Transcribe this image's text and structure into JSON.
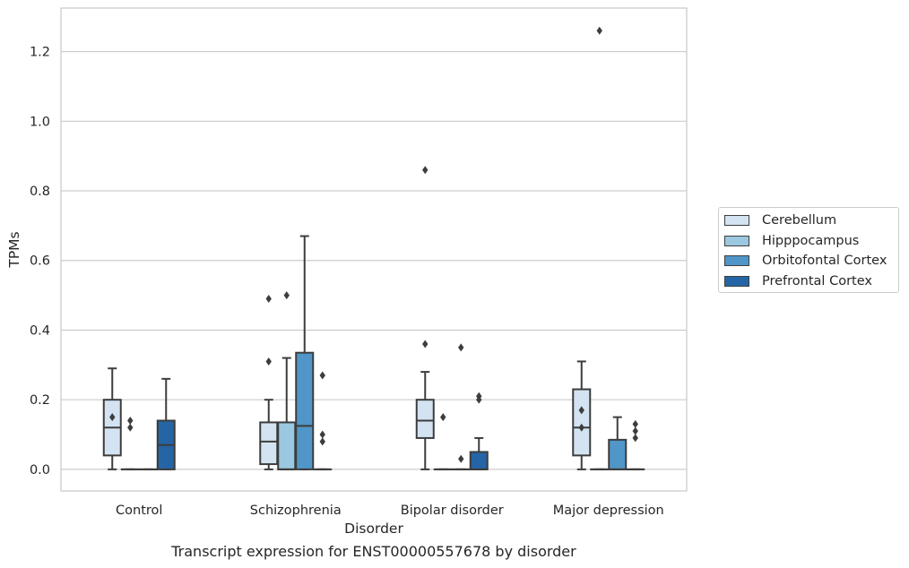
{
  "chart_data": {
    "type": "boxplot",
    "title": "Transcript expression for ENST00000557678 by disorder",
    "xlabel": "Disorder",
    "ylabel": "TPMs",
    "ylim": [
      -0.062,
      1.325
    ],
    "yticks": [
      0.0,
      0.2,
      0.4,
      0.6,
      0.8,
      1.0,
      1.2
    ],
    "ytick_labels": [
      "0.0",
      "0.2",
      "0.4",
      "0.6",
      "0.8",
      "1.0",
      "1.2"
    ],
    "categories": [
      "Control",
      "Schizophrenia",
      "Bipolar disorder",
      "Major depression"
    ],
    "grid": "horizontal",
    "legend_position": "right",
    "series": [
      {
        "name": "Cerebellum",
        "color": "#d3e3f2",
        "boxes": [
          {
            "whislo": 0.0,
            "q1": 0.04,
            "med": 0.12,
            "q3": 0.2,
            "whishi": 0.29,
            "fliers": [
              0.15
            ]
          },
          {
            "whislo": 0.0,
            "q1": 0.015,
            "med": 0.08,
            "q3": 0.135,
            "whishi": 0.2,
            "fliers": [
              0.49,
              0.31
            ]
          },
          {
            "whislo": 0.0,
            "q1": 0.09,
            "med": 0.14,
            "q3": 0.2,
            "whishi": 0.28,
            "fliers": [
              0.86,
              0.36
            ]
          },
          {
            "whislo": 0.0,
            "q1": 0.04,
            "med": 0.12,
            "q3": 0.23,
            "whishi": 0.31,
            "fliers": [
              0.17,
              0.12
            ]
          }
        ]
      },
      {
        "name": "Hipppocampus",
        "color": "#9ac8e0",
        "boxes": [
          {
            "whislo": 0.0,
            "q1": 0.0,
            "med": 0.0,
            "q3": 0.0,
            "whishi": 0.0,
            "fliers": [
              0.14,
              0.12
            ]
          },
          {
            "whislo": 0.0,
            "q1": 0.0,
            "med": 0.0,
            "q3": 0.135,
            "whishi": 0.32,
            "fliers": [
              0.5
            ]
          },
          {
            "whislo": 0.0,
            "q1": 0.0,
            "med": 0.0,
            "q3": 0.0,
            "whishi": 0.0,
            "fliers": [
              0.15
            ]
          },
          {
            "whislo": 0.0,
            "q1": 0.0,
            "med": 0.0,
            "q3": 0.0,
            "whishi": 0.0,
            "fliers": [
              1.26
            ]
          }
        ]
      },
      {
        "name": "Orbitofontal Cortex",
        "color": "#5096c8",
        "boxes": [
          {
            "whislo": 0.0,
            "q1": 0.0,
            "med": 0.0,
            "q3": 0.0,
            "whishi": 0.0,
            "fliers": []
          },
          {
            "whislo": 0.0,
            "q1": 0.0,
            "med": 0.125,
            "q3": 0.335,
            "whishi": 0.67,
            "fliers": []
          },
          {
            "whislo": 0.0,
            "q1": 0.0,
            "med": 0.0,
            "q3": 0.0,
            "whishi": 0.0,
            "fliers": [
              0.35,
              0.03
            ]
          },
          {
            "whislo": 0.0,
            "q1": 0.0,
            "med": 0.0,
            "q3": 0.085,
            "whishi": 0.15,
            "fliers": []
          }
        ]
      },
      {
        "name": "Prefrontal Cortex",
        "color": "#2565a6",
        "boxes": [
          {
            "whislo": 0.0,
            "q1": 0.0,
            "med": 0.07,
            "q3": 0.14,
            "whishi": 0.26,
            "fliers": []
          },
          {
            "whislo": 0.0,
            "q1": 0.0,
            "med": 0.0,
            "q3": 0.0,
            "whishi": 0.0,
            "fliers": [
              0.27,
              0.1,
              0.08
            ]
          },
          {
            "whislo": 0.0,
            "q1": 0.0,
            "med": 0.0,
            "q3": 0.05,
            "whishi": 0.09,
            "fliers": [
              0.21,
              0.2
            ]
          },
          {
            "whislo": 0.0,
            "q1": 0.0,
            "med": 0.0,
            "q3": 0.0,
            "whishi": 0.0,
            "fliers": [
              0.13,
              0.11,
              0.09
            ]
          }
        ]
      }
    ]
  }
}
